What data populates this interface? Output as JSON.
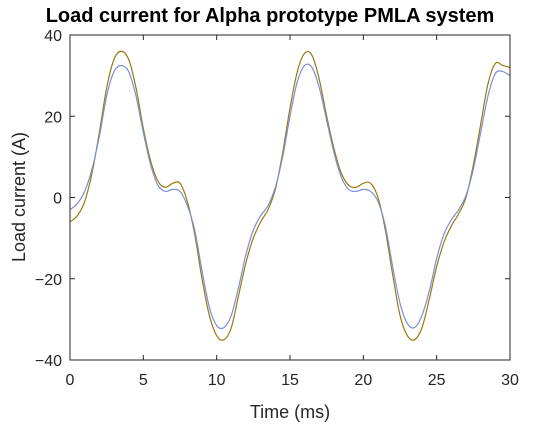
{
  "chart_data": {
    "type": "line",
    "title": "Load current for  Alpha prototype PMLA system",
    "xlabel": "Time (ms)",
    "ylabel": "Load current (A)",
    "xlim": [
      0,
      30
    ],
    "ylim": [
      -40,
      40
    ],
    "xticks": [
      0,
      5,
      10,
      15,
      20,
      25,
      30
    ],
    "yticks": [
      -40,
      -20,
      0,
      20,
      40
    ],
    "xtick_labels": [
      "0",
      "5",
      "10",
      "15",
      "20",
      "25",
      "30"
    ],
    "ytick_labels": [
      "−40",
      "−20",
      "0",
      "20",
      "40"
    ],
    "grid": false,
    "legend": "none",
    "series": [
      {
        "color": "#9a7a10",
        "x": [
          0,
          0.5,
          1,
          1.5,
          2,
          2.5,
          3,
          3.5,
          4,
          4.5,
          5,
          5.5,
          6,
          6.5,
          7,
          7.5,
          8,
          8.5,
          9,
          9.5,
          10,
          10.5,
          11,
          11.5,
          12,
          12.5,
          13,
          13.5,
          14,
          14.5,
          15,
          15.5,
          16,
          16.5,
          17,
          17.5,
          18,
          18.5,
          19,
          19.5,
          20,
          20.5,
          21,
          21.5,
          22,
          22.5,
          23,
          23.5,
          24,
          24.5,
          25,
          25.5,
          26,
          26.5,
          27,
          27.5,
          28,
          28.5,
          29,
          29.5,
          30
        ],
        "y": [
          -6,
          -4.5,
          -1,
          6,
          16,
          27,
          34,
          36,
          34,
          27,
          17,
          9,
          4,
          2.5,
          3.5,
          3.5,
          -1,
          -9,
          -20,
          -29,
          -34,
          -35,
          -32,
          -24,
          -16,
          -10,
          -6,
          -3,
          2,
          11,
          22,
          31,
          35.5,
          35,
          29,
          20,
          12,
          6,
          3,
          2.5,
          3.5,
          3.5,
          0,
          -8,
          -19,
          -29,
          -34,
          -35,
          -32,
          -25,
          -17,
          -11,
          -7,
          -4,
          0,
          8,
          18,
          28,
          33,
          32.5,
          32
        ]
      },
      {
        "color": "#7a8fd8",
        "x": [
          0,
          0.5,
          1,
          1.5,
          2,
          2.5,
          3,
          3.5,
          4,
          4.5,
          5,
          5.5,
          6,
          6.5,
          7,
          7.5,
          8,
          8.5,
          9,
          9.5,
          10,
          10.5,
          11,
          11.5,
          12,
          12.5,
          13,
          13.5,
          14,
          14.5,
          15,
          15.5,
          16,
          16.5,
          17,
          17.5,
          18,
          18.5,
          19,
          19.5,
          20,
          20.5,
          21,
          21.5,
          22,
          22.5,
          23,
          23.5,
          24,
          24.5,
          25,
          25.5,
          26,
          26.5,
          27,
          27.5,
          28,
          28.5,
          29,
          29.5,
          30
        ],
        "y": [
          -3,
          -1.5,
          1.5,
          7,
          15,
          25,
          31,
          32.5,
          31,
          25,
          16,
          8,
          3,
          1.5,
          2,
          1.5,
          -2,
          -8,
          -18,
          -27,
          -31.5,
          -32,
          -29,
          -22,
          -14,
          -8,
          -4.5,
          -2,
          2.5,
          10,
          20,
          28.5,
          32.5,
          32,
          27,
          19,
          11,
          5,
          2,
          1.5,
          2,
          1.5,
          -1,
          -7,
          -17,
          -26,
          -31,
          -32,
          -29,
          -23,
          -15,
          -9,
          -5.5,
          -3,
          0.5,
          7,
          16,
          25,
          30.5,
          31,
          30
        ]
      }
    ]
  }
}
